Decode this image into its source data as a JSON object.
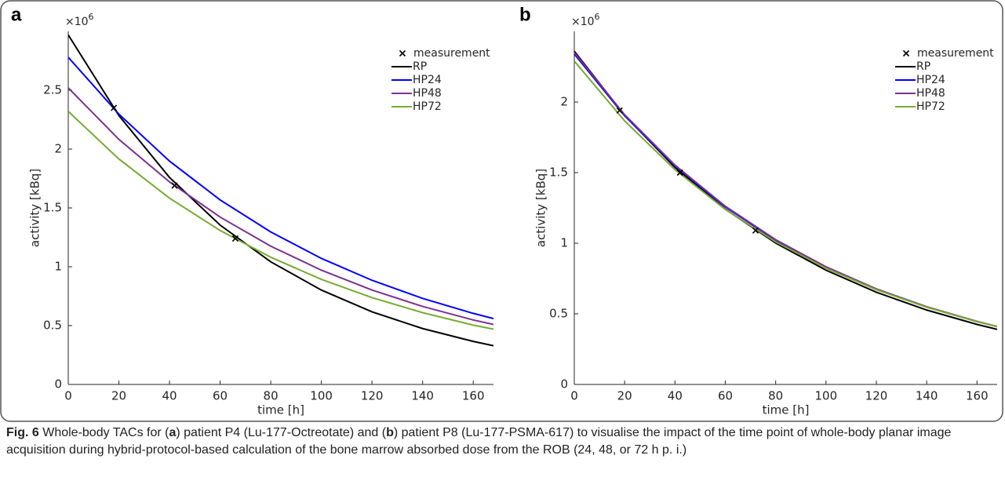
{
  "chart_data": [
    {
      "type": "line",
      "panel_label": "a",
      "xlabel": "time [h]",
      "ylabel": "activity [kBq]",
      "y_scale_label": "×10",
      "y_scale_exponent": "6",
      "x": [
        0,
        20,
        40,
        60,
        80,
        100,
        120,
        140,
        160,
        168
      ],
      "xlim": [
        0,
        168
      ],
      "xticks": [
        0,
        20,
        40,
        60,
        80,
        100,
        120,
        140,
        160
      ],
      "ylim": [
        0,
        3
      ],
      "yticks": [
        0,
        0.5,
        1,
        1.5,
        2,
        2.5
      ],
      "legend": "upper right",
      "series": [
        {
          "name": "measurement",
          "color": "#000000",
          "marker": "x",
          "x": [
            18,
            42,
            66
          ],
          "values": [
            2.35,
            1.69,
            1.24
          ]
        },
        {
          "name": "RP",
          "color": "#000000",
          "values": [
            2.97,
            2.285,
            1.759,
            1.354,
            1.042,
            0.802,
            0.617,
            0.475,
            0.366,
            0.329
          ]
        },
        {
          "name": "HP24",
          "color": "#0000ff",
          "values": [
            2.78,
            2.297,
            1.898,
            1.568,
            1.296,
            1.071,
            0.885,
            0.731,
            0.604,
            0.56
          ]
        },
        {
          "name": "HP48",
          "color": "#7e2f8e",
          "values": [
            2.52,
            2.082,
            1.721,
            1.422,
            1.175,
            0.971,
            0.802,
            0.663,
            0.548,
            0.51
          ]
        },
        {
          "name": "HP72",
          "color": "#77ac30",
          "values": [
            2.32,
            1.916,
            1.583,
            1.308,
            1.081,
            0.893,
            0.738,
            0.61,
            0.504,
            0.47
          ]
        }
      ]
    },
    {
      "type": "line",
      "panel_label": "b",
      "xlabel": "time [h]",
      "ylabel": "activity [kBq]",
      "y_scale_label": "×10",
      "y_scale_exponent": "6",
      "x": [
        0,
        20,
        40,
        60,
        80,
        100,
        120,
        140,
        160,
        168
      ],
      "xlim": [
        0,
        168
      ],
      "xticks": [
        0,
        20,
        40,
        60,
        80,
        100,
        120,
        140,
        160
      ],
      "ylim": [
        0,
        2.5
      ],
      "yticks": [
        0,
        0.5,
        1,
        1.5,
        2
      ],
      "legend": "upper right",
      "series": [
        {
          "name": "measurement",
          "color": "#000000",
          "marker": "x",
          "x": [
            18,
            42,
            72
          ],
          "values": [
            1.94,
            1.5,
            1.09
          ]
        },
        {
          "name": "RP",
          "color": "#000000",
          "values": [
            2.36,
            1.905,
            1.537,
            1.241,
            1.001,
            0.809,
            0.653,
            0.527,
            0.425,
            0.39
          ]
        },
        {
          "name": "HP24",
          "color": "#0000ff",
          "values": [
            2.34,
            1.902,
            1.547,
            1.257,
            1.021,
            0.83,
            0.675,
            0.548,
            0.445,
            0.41
          ]
        },
        {
          "name": "HP48",
          "color": "#7e2f8e",
          "values": [
            2.35,
            1.91,
            1.553,
            1.262,
            1.025,
            0.833,
            0.677,
            0.55,
            0.447,
            0.41
          ]
        },
        {
          "name": "HP72",
          "color": "#77ac30",
          "values": [
            2.29,
            1.866,
            1.521,
            1.239,
            1.01,
            0.823,
            0.671,
            0.547,
            0.445,
            0.41
          ]
        }
      ]
    }
  ],
  "caption": {
    "label": "Fig. 6",
    "parts": [
      " Whole-body TACs for (",
      "a",
      ") patient P4 (Lu-177-Octreotate) and (",
      "b",
      ") patient P8 (Lu-177-PSMA-617) to visualise the impact of the time point of whole-body planar image acquisition during hybrid-protocol-based calculation of the bone marrow absorbed dose from the ROB (24, 48, or 72 h p. i.)"
    ]
  }
}
